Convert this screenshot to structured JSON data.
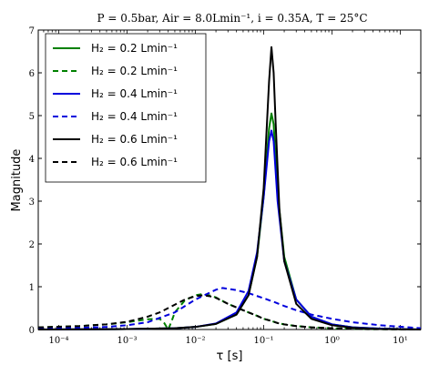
{
  "chart_data": {
    "type": "line",
    "title": "P = 0.5bar, Air = 8.0Lmin⁻¹, i = 0.35A, T = 25°C",
    "xlabel": "τ [s]",
    "ylabel": "Magnitude",
    "xscale": "log",
    "xlim": [
      5e-05,
      20
    ],
    "ylim": [
      0,
      7
    ],
    "yticks": [
      0,
      1,
      2,
      3,
      4,
      5,
      6,
      7
    ],
    "xtick_labels": [
      "10⁻⁴",
      "10⁻³",
      "10⁻²",
      "10⁻¹",
      "10⁰",
      "10¹"
    ],
    "xtick_values": [
      0.0001,
      0.001,
      0.01,
      0.1,
      1,
      10
    ],
    "grid": false,
    "legend_position": "top-left",
    "colors": {
      "green": "#008000",
      "blue": "#0000dd",
      "black": "#000000"
    },
    "series": [
      {
        "name": "H₂ = 0.2 Lmin⁻¹",
        "color": "#008000",
        "style": "solid",
        "x": [
          5e-05,
          0.001,
          0.005,
          0.01,
          0.02,
          0.04,
          0.06,
          0.08,
          0.1,
          0.12,
          0.13,
          0.14,
          0.16,
          0.2,
          0.3,
          0.5,
          1,
          2,
          5,
          20
        ],
        "y": [
          0.0,
          0.01,
          0.03,
          0.06,
          0.13,
          0.35,
          0.8,
          1.7,
          3.1,
          4.7,
          5.05,
          4.8,
          3.2,
          1.7,
          0.7,
          0.3,
          0.12,
          0.05,
          0.02,
          0.0
        ]
      },
      {
        "name": "H₂ = 0.2 Lmin⁻¹",
        "color": "#008000",
        "style": "dashed",
        "x": [
          5e-05,
          0.0002,
          0.0005,
          0.001,
          0.002,
          0.003,
          0.0035,
          0.004,
          0.0045,
          0.005,
          0.007,
          0.01,
          0.013,
          0.016,
          0.02,
          0.03,
          0.05,
          0.08,
          0.1,
          0.13,
          0.16,
          0.2,
          0.3,
          0.5,
          1,
          3,
          20
        ],
        "y": [
          0.05,
          0.08,
          0.12,
          0.17,
          0.24,
          0.25,
          0.15,
          0.0,
          0.2,
          0.4,
          0.68,
          0.8,
          0.83,
          0.8,
          0.75,
          0.6,
          0.45,
          0.32,
          0.25,
          0.2,
          0.15,
          0.12,
          0.08,
          0.05,
          0.03,
          0.01,
          0.0
        ]
      },
      {
        "name": "H₂ = 0.4 Lmin⁻¹",
        "color": "#0000dd",
        "style": "solid",
        "x": [
          5e-05,
          0.001,
          0.005,
          0.01,
          0.02,
          0.04,
          0.06,
          0.08,
          0.1,
          0.12,
          0.13,
          0.14,
          0.16,
          0.2,
          0.3,
          0.5,
          1,
          2,
          5,
          20
        ],
        "y": [
          0.0,
          0.01,
          0.03,
          0.06,
          0.14,
          0.4,
          0.9,
          1.8,
          3.1,
          4.4,
          4.65,
          4.4,
          3.0,
          1.6,
          0.7,
          0.3,
          0.12,
          0.05,
          0.02,
          0.0
        ]
      },
      {
        "name": "H₂ = 0.4 Lmin⁻¹",
        "color": "#0000dd",
        "style": "dashed",
        "x": [
          5e-05,
          0.0002,
          0.0005,
          0.001,
          0.002,
          0.005,
          0.01,
          0.02,
          0.025,
          0.04,
          0.06,
          0.1,
          0.15,
          0.2,
          0.3,
          0.5,
          1,
          2,
          5,
          20
        ],
        "y": [
          0.03,
          0.04,
          0.06,
          0.1,
          0.17,
          0.4,
          0.7,
          0.93,
          0.97,
          0.92,
          0.85,
          0.73,
          0.63,
          0.55,
          0.45,
          0.35,
          0.25,
          0.17,
          0.1,
          0.03
        ]
      },
      {
        "name": "H₂ = 0.6 Lmin⁻¹",
        "color": "#000000",
        "style": "solid",
        "x": [
          5e-05,
          0.001,
          0.005,
          0.01,
          0.02,
          0.04,
          0.06,
          0.08,
          0.1,
          0.12,
          0.13,
          0.14,
          0.15,
          0.17,
          0.2,
          0.3,
          0.5,
          1,
          2,
          5,
          20
        ],
        "y": [
          0.0,
          0.01,
          0.03,
          0.06,
          0.13,
          0.35,
          0.8,
          1.7,
          3.3,
          5.8,
          6.6,
          6.0,
          4.8,
          2.8,
          1.6,
          0.6,
          0.25,
          0.1,
          0.04,
          0.01,
          0.0
        ]
      },
      {
        "name": "H₂ = 0.6 Lmin⁻¹",
        "color": "#000000",
        "style": "dashed",
        "x": [
          5e-05,
          0.0002,
          0.0005,
          0.001,
          0.002,
          0.003,
          0.005,
          0.007,
          0.01,
          0.013,
          0.016,
          0.02,
          0.03,
          0.05,
          0.08,
          0.1,
          0.13,
          0.16,
          0.2,
          0.3,
          0.5,
          1,
          3,
          20
        ],
        "y": [
          0.05,
          0.08,
          0.12,
          0.18,
          0.3,
          0.4,
          0.58,
          0.7,
          0.78,
          0.8,
          0.78,
          0.74,
          0.6,
          0.45,
          0.32,
          0.25,
          0.2,
          0.15,
          0.12,
          0.08,
          0.05,
          0.03,
          0.01,
          0.0
        ]
      }
    ]
  }
}
